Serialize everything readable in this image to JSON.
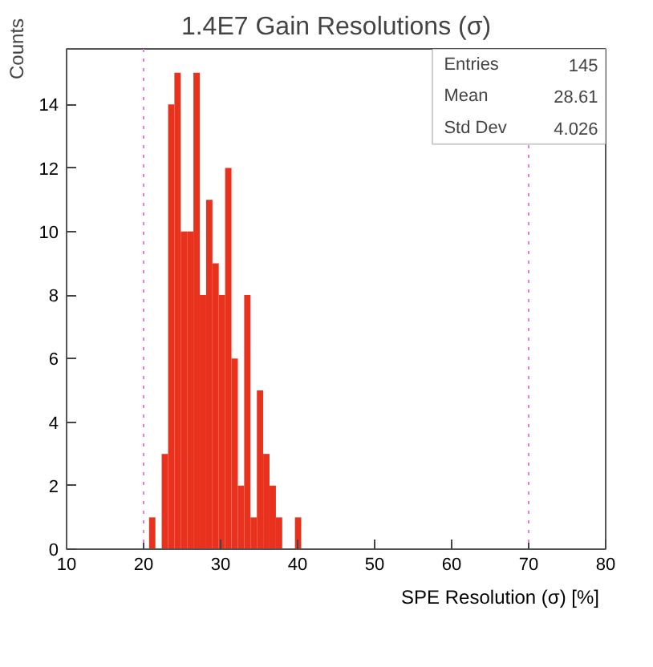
{
  "chart_data": {
    "type": "histogram",
    "title": "1.4E7 Gain Resolutions (σ)",
    "xlabel": "SPE Resolution (σ) [%]",
    "ylabel": "Counts",
    "bins": [
      20.71,
      21.53,
      22.35,
      23.18,
      24.0,
      24.82,
      25.65,
      26.47,
      27.29,
      28.12,
      28.94,
      29.76,
      30.59,
      31.41,
      32.24,
      33.06,
      33.88,
      34.71,
      35.53,
      36.35,
      37.18,
      38.0,
      38.82,
      39.65,
      40.47
    ],
    "values": [
      1,
      0,
      3,
      14,
      15,
      10,
      10,
      15,
      8,
      11,
      9,
      8,
      12,
      6,
      2,
      8,
      1,
      5,
      3,
      2,
      1,
      0,
      0,
      1
    ],
    "color": "#e8321e",
    "xlim": [
      10,
      80
    ],
    "ylim": [
      0,
      15.75
    ],
    "xticks": [
      10,
      20,
      30,
      40,
      50,
      60,
      70,
      80
    ],
    "yticks": [
      0,
      2,
      4,
      6,
      8,
      10,
      12,
      14
    ],
    "ref_lines": [
      {
        "axis": "x",
        "value": 20,
        "color": "#e07ee0",
        "line_style": "dotted"
      },
      {
        "axis": "x",
        "value": 70,
        "color": "#e07ee0",
        "line_style": "dotted"
      }
    ],
    "annotations": [
      "Entries 145",
      "Mean 28.61",
      "Std Dev 4.026"
    ],
    "grid": false
  }
}
